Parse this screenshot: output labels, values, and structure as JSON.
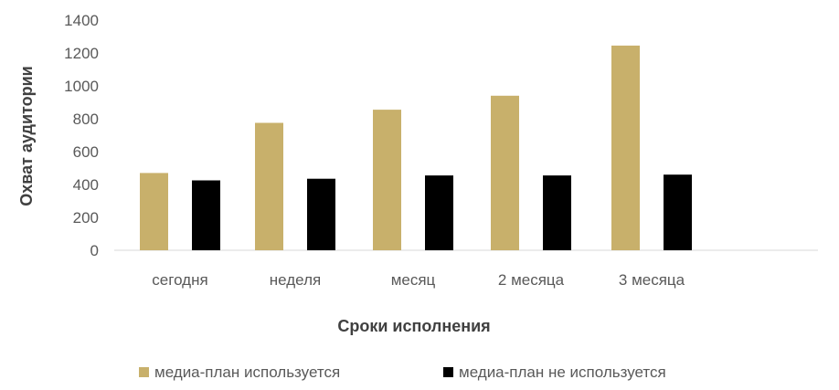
{
  "chart_data": {
    "type": "bar",
    "categories": [
      "сегодня",
      "неделя",
      "месяц",
      "2 месяца",
      "3 месяца"
    ],
    "series": [
      {
        "name": "медиа-план используется",
        "color": "#c8b06b",
        "values": [
          470,
          775,
          855,
          940,
          1245
        ]
      },
      {
        "name": "медиа-план не используется",
        "color": "#000000",
        "values": [
          425,
          435,
          455,
          455,
          460
        ]
      }
    ],
    "xlabel": "Сроки исполнения",
    "ylabel": "Охват аудитории",
    "ylim": [
      0,
      1400
    ],
    "yticks": [
      0,
      200,
      400,
      600,
      800,
      1000,
      1200,
      1400
    ],
    "grid": false,
    "legend": "bottom"
  }
}
